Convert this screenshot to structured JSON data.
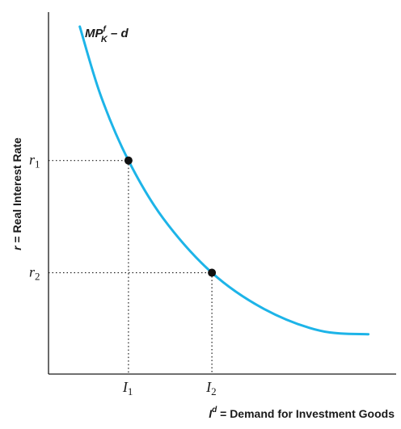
{
  "chart_data": {
    "type": "line",
    "curve_label": {
      "text": "MP",
      "sup": "f",
      "sub": "K",
      "tail": " – d"
    },
    "ylabel": {
      "var": "r",
      "text": " = Real Interest Rate"
    },
    "xlabel": {
      "var": "I",
      "sup": "d",
      "text": " = Demand for Investment Goods"
    },
    "y_ticks": [
      {
        "sym": "r",
        "sub": "1"
      },
      {
        "sym": "r",
        "sub": "2"
      }
    ],
    "x_ticks": [
      {
        "sym": "I",
        "sub": "1"
      },
      {
        "sym": "I",
        "sub": "2"
      }
    ],
    "xlim": [
      0,
      10
    ],
    "ylim": [
      0,
      10
    ],
    "curve": {
      "x": [
        0.9,
        1.5,
        2.3,
        3.3,
        4.7,
        6.2,
        7.8,
        9.2
      ],
      "y": [
        9.6,
        7.7,
        5.9,
        4.3,
        2.8,
        1.8,
        1.2,
        1.1
      ]
    },
    "points": [
      {
        "x": 2.3,
        "y": 5.9
      },
      {
        "x": 4.7,
        "y": 2.8
      }
    ],
    "colors": {
      "curve": "#1db4e8",
      "axis": "#1a1a1a",
      "points": "#111111"
    },
    "grid": false
  }
}
